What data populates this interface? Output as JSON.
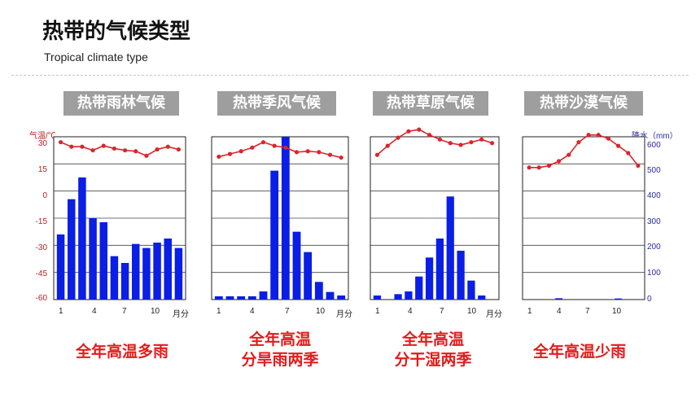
{
  "header": {
    "title": "热带的气候类型",
    "subtitle": "Tropical climate type"
  },
  "axes": {
    "left_title": "气温/℃",
    "right_title": "降水（mm）",
    "left_ticks": [
      "30",
      "15",
      "0",
      "-15",
      "-30",
      "-45",
      "-60"
    ],
    "right_ticks": [
      "600",
      "500",
      "400",
      "300",
      "200",
      "100",
      "0"
    ],
    "x_ticks": [
      "1",
      "4",
      "7",
      "10"
    ],
    "x_unit": "月分"
  },
  "colors": {
    "temperature": "#d9262b",
    "precipitation": "#0a1ee6",
    "panel_title_bg": "#9e9e9e",
    "caption": "#e31b1b"
  },
  "panels": [
    {
      "title": "热带雨林气候",
      "caption_line1": "全年高温多雨",
      "caption_line2": ""
    },
    {
      "title": "热带季风气候",
      "caption_line1": "全年高温",
      "caption_line2": "分旱雨两季"
    },
    {
      "title": "热带草原气候",
      "caption_line1": "全年高温",
      "caption_line2": "分干湿两季"
    },
    {
      "title": "热带沙漠气候",
      "caption_line1": "全年高温少雨",
      "caption_line2": ""
    }
  ],
  "chart_data": [
    {
      "type": "bar",
      "title": "热带雨林气候",
      "categories": [
        "1",
        "2",
        "3",
        "4",
        "5",
        "6",
        "7",
        "8",
        "9",
        "10",
        "11",
        "12"
      ],
      "series": [
        {
          "kind": "bar",
          "values_mm": [
            240,
            370,
            450,
            300,
            285,
            160,
            135,
            205,
            190,
            210,
            225,
            190
          ]
        },
        {
          "kind": "line",
          "values_c": [
            27,
            24.5,
            24.5,
            22.5,
            25,
            23.5,
            22.5,
            22,
            19.5,
            23,
            24.5,
            23
          ]
        }
      ],
      "ylim_temperature": [
        -60,
        30
      ],
      "ylim_precipitation": [
        0,
        600
      ]
    },
    {
      "type": "bar",
      "title": "热带季风气候",
      "categories": [
        "1",
        "2",
        "3",
        "4",
        "5",
        "6",
        "7",
        "8",
        "9",
        "10",
        "11",
        "12"
      ],
      "series": [
        {
          "kind": "bar",
          "values_mm": [
            12,
            12,
            12,
            12,
            30,
            475,
            600,
            250,
            175,
            65,
            28,
            15
          ]
        },
        {
          "kind": "line",
          "values_c": [
            19,
            20.5,
            22,
            24,
            27,
            25,
            24,
            21.5,
            22,
            21.5,
            20,
            18.5
          ]
        }
      ],
      "ylim_temperature": [
        -60,
        30
      ],
      "ylim_precipitation": [
        0,
        600
      ]
    },
    {
      "type": "bar",
      "title": "热带草原气候",
      "categories": [
        "1",
        "2",
        "3",
        "4",
        "5",
        "6",
        "7",
        "8",
        "9",
        "10",
        "11",
        "12"
      ],
      "series": [
        {
          "kind": "bar",
          "values_mm": [
            15,
            0,
            20,
            30,
            85,
            155,
            225,
            380,
            180,
            70,
            15,
            0
          ]
        },
        {
          "kind": "line",
          "values_c": [
            20,
            25,
            29.5,
            33,
            34,
            31,
            28.5,
            26.5,
            25.5,
            27,
            28.5,
            26.5
          ]
        }
      ],
      "ylim_temperature": [
        -60,
        30
      ],
      "ylim_precipitation": [
        0,
        600
      ]
    },
    {
      "type": "bar",
      "title": "热带沙漠气候",
      "categories": [
        "1",
        "2",
        "3",
        "4",
        "5",
        "6",
        "7",
        "8",
        "9",
        "10",
        "11",
        "12"
      ],
      "series": [
        {
          "kind": "bar",
          "values_mm": [
            0,
            0,
            0,
            5,
            0,
            0,
            0,
            0,
            0,
            4,
            0,
            0
          ]
        },
        {
          "kind": "line",
          "values_c": [
            13,
            13,
            14,
            16.5,
            20,
            27,
            31,
            31,
            29,
            25,
            21,
            14
          ]
        }
      ],
      "ylim_temperature": [
        -60,
        30
      ],
      "ylim_precipitation": [
        0,
        600
      ]
    }
  ]
}
